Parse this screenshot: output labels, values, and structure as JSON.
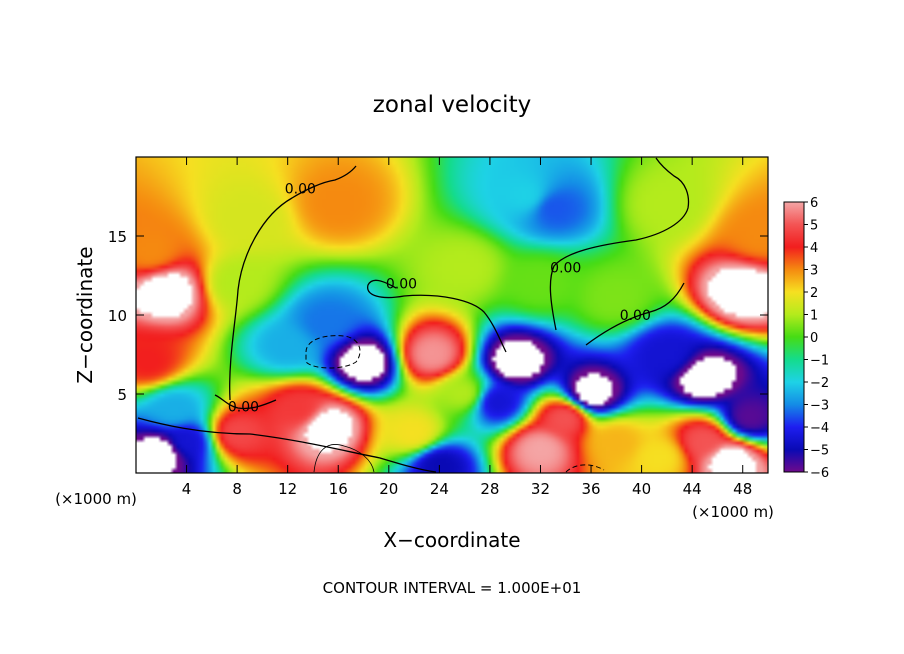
{
  "chart_data": {
    "type": "heatmap",
    "title": "zonal velocity",
    "xlabel": "X−coordinate",
    "ylabel": "Z−coordinate",
    "x_unit_left": "(×1000 m)",
    "x_unit_right": "(×1000 m)",
    "footer": "CONTOUR INTERVAL = 1.000E+01",
    "xlim": [
      0,
      50
    ],
    "ylim": [
      0,
      20
    ],
    "x_ticks": [
      4,
      8,
      12,
      16,
      20,
      24,
      28,
      32,
      36,
      40,
      44,
      48
    ],
    "y_ticks": [
      5,
      10,
      15
    ],
    "colorbar": {
      "ticks": [
        6,
        5,
        4,
        3,
        2,
        1,
        0,
        -1,
        -2,
        -3,
        -4,
        -5,
        -6
      ],
      "tick_labels": [
        "6",
        "5",
        "4",
        "3",
        "2",
        "1",
        "0",
        "−1",
        "−2",
        "−3",
        "−4",
        "−5",
        "−6"
      ],
      "range": [
        -6,
        6
      ],
      "out_of_range_color": "#ffffff"
    },
    "contour_labels": [
      {
        "text": "0.00",
        "x": 13,
        "z": 18
      },
      {
        "text": "0.00",
        "x": 21,
        "z": 12
      },
      {
        "text": "0.00",
        "x": 34,
        "z": 13
      },
      {
        "text": "0.00",
        "x": 39.5,
        "z": 10
      },
      {
        "text": "0.00",
        "x": 8.5,
        "z": 4.2
      }
    ],
    "features": [
      {
        "x": 16,
        "z": 17,
        "value": 3
      },
      {
        "x": 9,
        "z": 16,
        "value": 1.5
      },
      {
        "x": 31,
        "z": 17.5,
        "value": -2
      },
      {
        "x": 33,
        "z": 16.8,
        "value": -3.5
      },
      {
        "x": 32,
        "z": 12,
        "value": 0.3
      },
      {
        "x": 42,
        "z": 17,
        "value": 1
      },
      {
        "x": 2.5,
        "z": 11.5,
        "value": 7
      },
      {
        "x": 1.2,
        "z": 14,
        "value": 3
      },
      {
        "x": 48,
        "z": 11.5,
        "value": 7
      },
      {
        "x": 49.5,
        "z": 15,
        "value": 3
      },
      {
        "x": 15,
        "z": 9.5,
        "value": -3.2
      },
      {
        "x": 12,
        "z": 8,
        "value": -2.5
      },
      {
        "x": 18,
        "z": 7,
        "value": -7
      },
      {
        "x": 15,
        "z": 3,
        "value": 7
      },
      {
        "x": 13,
        "z": 4,
        "value": 4.5
      },
      {
        "x": 8,
        "z": 2.5,
        "value": 4.8
      },
      {
        "x": 4,
        "z": 2,
        "value": -4.5
      },
      {
        "x": 2,
        "z": 1.3,
        "value": -7
      },
      {
        "x": 1,
        "z": 7,
        "value": 4
      },
      {
        "x": 3,
        "z": 4,
        "value": -2.5
      },
      {
        "x": 23.5,
        "z": 7.5,
        "value": 5.8
      },
      {
        "x": 22,
        "z": 2.5,
        "value": 2
      },
      {
        "x": 26,
        "z": 5,
        "value": 1
      },
      {
        "x": 30,
        "z": 7,
        "value": -7
      },
      {
        "x": 28.5,
        "z": 4.5,
        "value": -4.5
      },
      {
        "x": 36,
        "z": 5,
        "value": -7
      },
      {
        "x": 34,
        "z": 3.5,
        "value": 5
      },
      {
        "x": 32,
        "z": 1.5,
        "value": 6
      },
      {
        "x": 38,
        "z": 2,
        "value": 2.5
      },
      {
        "x": 45,
        "z": 6,
        "value": -7
      },
      {
        "x": 42,
        "z": 7.5,
        "value": -4.5
      },
      {
        "x": 48.5,
        "z": 3.5,
        "value": -5.8
      },
      {
        "x": 45,
        "z": 2,
        "value": 5
      },
      {
        "x": 47,
        "z": 0.8,
        "value": 7
      },
      {
        "x": 41.5,
        "z": 1,
        "value": 2
      },
      {
        "x": 24,
        "z": 0.5,
        "value": -5
      },
      {
        "x": 26,
        "z": 13,
        "value": 1
      },
      {
        "x": 38,
        "z": 11,
        "value": 0.5
      },
      {
        "x": 8,
        "z": 12,
        "value": 1
      }
    ]
  }
}
